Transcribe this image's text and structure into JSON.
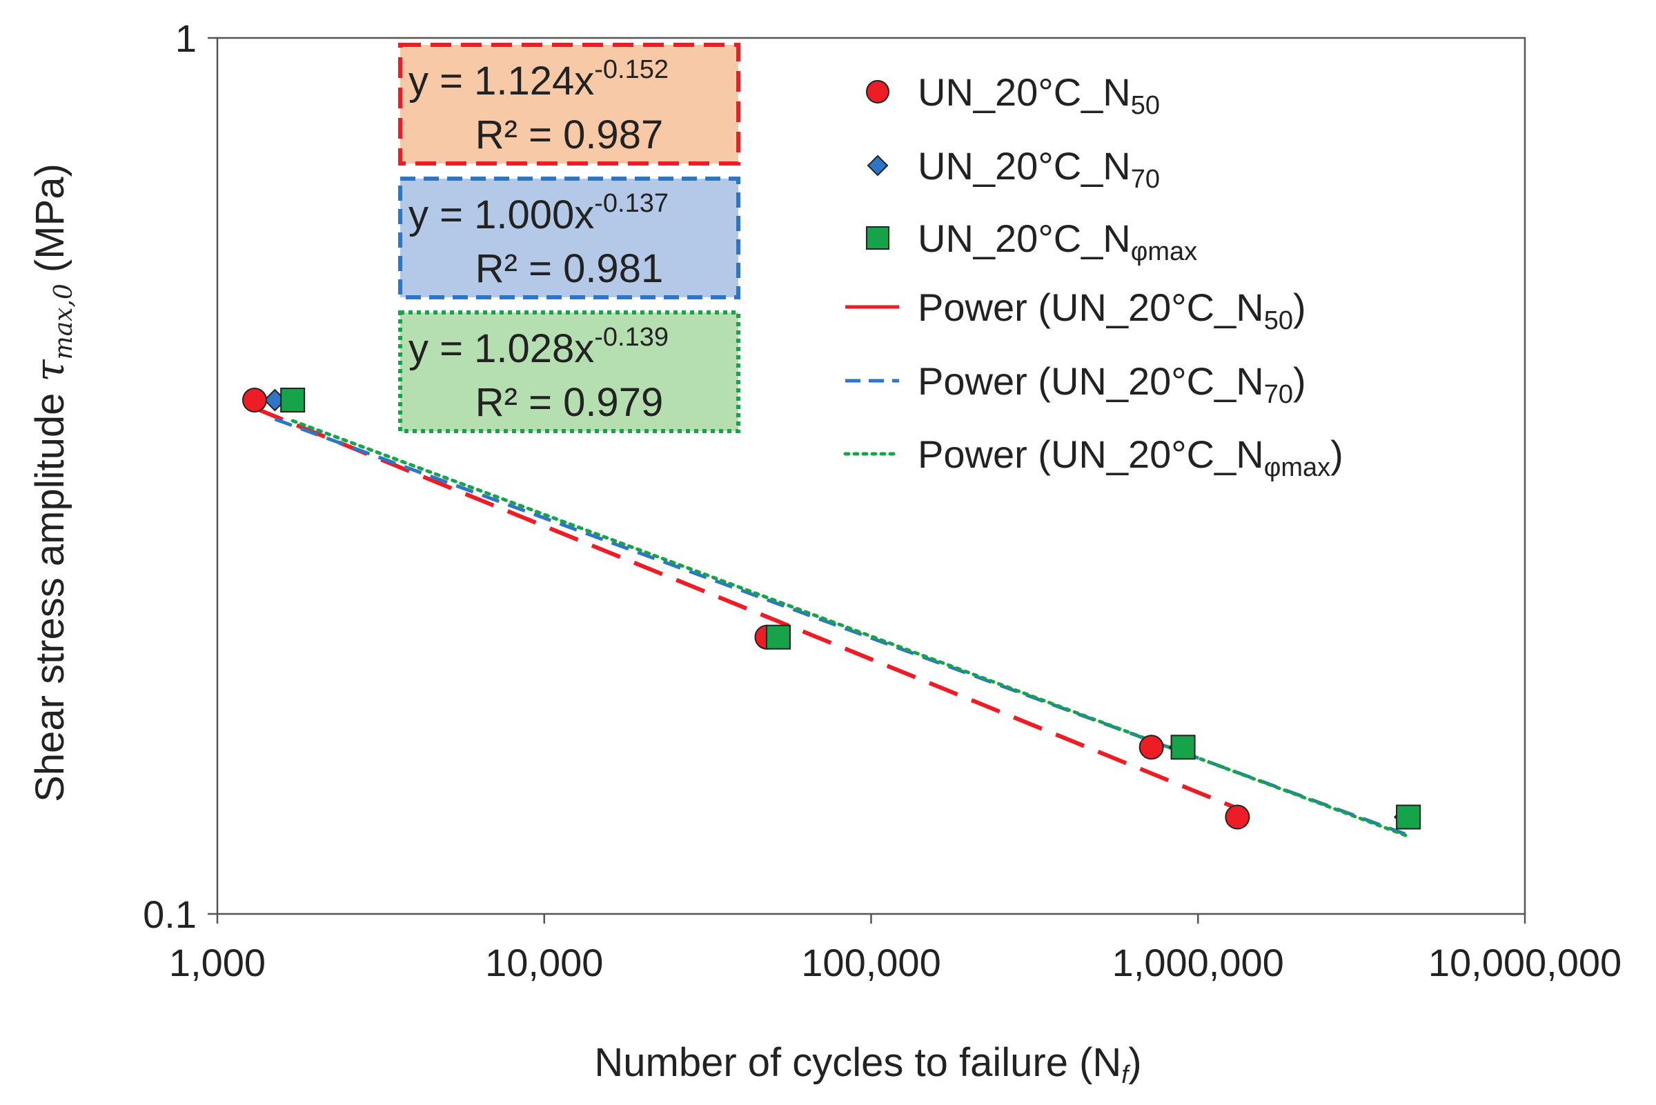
{
  "chart_data": {
    "type": "scatter",
    "xscale": "log",
    "yscale": "log",
    "xlim": [
      1000,
      10000000
    ],
    "ylim": [
      0.1,
      1
    ],
    "xticks": [
      1000,
      10000,
      100000,
      1000000,
      10000000
    ],
    "xtick_labels": [
      "1,000",
      "10,000",
      "100,000",
      "1,000,000",
      "10,000,000"
    ],
    "yticks": [
      0.1,
      1
    ],
    "ytick_labels": [
      "0.1",
      "1"
    ],
    "xlabel": {
      "main": "Number of cycles to failure (N",
      "sub": "f",
      "close": ")"
    },
    "ylabel": {
      "main": "Shear stress amplitude ",
      "tau": "τ",
      "sub": "max,0",
      "unit": " (MPa)"
    },
    "grid": false,
    "legend_position": "top-right",
    "series": [
      {
        "name": "UN_20°C_N50",
        "label_base": "UN_20°C_N",
        "label_sub": "50",
        "marker": "circle",
        "color": "#ee1c24",
        "points": [
          [
            1300,
            0.386
          ],
          [
            48000,
            0.207
          ],
          [
            720000,
            0.155
          ],
          [
            1320000,
            0.129
          ]
        ]
      },
      {
        "name": "UN_20°C_N70",
        "label_base": "UN_20°C_N",
        "label_sub": "70",
        "marker": "diamond",
        "color": "#2e75c7",
        "points": [
          [
            1500,
            0.386
          ],
          [
            51000,
            0.207
          ],
          [
            880000,
            0.155
          ],
          [
            4300000,
            0.129
          ]
        ]
      },
      {
        "name": "UN_20°C_Nφmax",
        "label_base": "UN_20°C_N",
        "label_sub": "φmax",
        "marker": "square",
        "color": "#16a34a",
        "points": [
          [
            1700,
            0.386
          ],
          [
            52000,
            0.207
          ],
          [
            900000,
            0.155
          ],
          [
            4400000,
            0.129
          ]
        ]
      }
    ],
    "trendlines": [
      {
        "name": "Power (UN_20°C_N50)",
        "label_base": "Power (UN_20°C_N",
        "label_sub": "50",
        "label_close": ")",
        "type": "power",
        "a": 1.124,
        "b": -0.152,
        "r2": 0.987,
        "x_range": [
          1300,
          1320000
        ],
        "color": "#ee1c24",
        "style": "long-dash"
      },
      {
        "name": "Power (UN_20°C_N70)",
        "label_base": "Power (UN_20°C_N",
        "label_sub": "70",
        "label_close": ")",
        "type": "power",
        "a": 1.0,
        "b": -0.137,
        "r2": 0.981,
        "x_range": [
          1500,
          4300000
        ],
        "color": "#2e75c7",
        "style": "dash"
      },
      {
        "name": "Power (UN_20°C_Nφmax)",
        "label_base": "Power (UN_20°C_N",
        "label_sub": "φmax",
        "label_close": ")",
        "type": "power",
        "a": 1.028,
        "b": -0.139,
        "r2": 0.979,
        "x_range": [
          1700,
          4400000
        ],
        "color": "#16a34a",
        "style": "dot"
      }
    ],
    "equation_boxes": [
      {
        "eq_base": "y = 1.124x",
        "eq_exp": "-0.152",
        "r2_text": "R² = 0.987",
        "fill": "#f8c9a6",
        "border": "#ee1c24"
      },
      {
        "eq_base": "y = 1.000x",
        "eq_exp": "-0.137",
        "r2_text": "R² = 0.981",
        "fill": "#b4c9e8",
        "border": "#2e75c7"
      },
      {
        "eq_base": "y = 1.028x",
        "eq_exp": "-0.139",
        "r2_text": "R² = 0.979",
        "fill": "#b5dfb0",
        "border": "#16a34a"
      }
    ]
  }
}
